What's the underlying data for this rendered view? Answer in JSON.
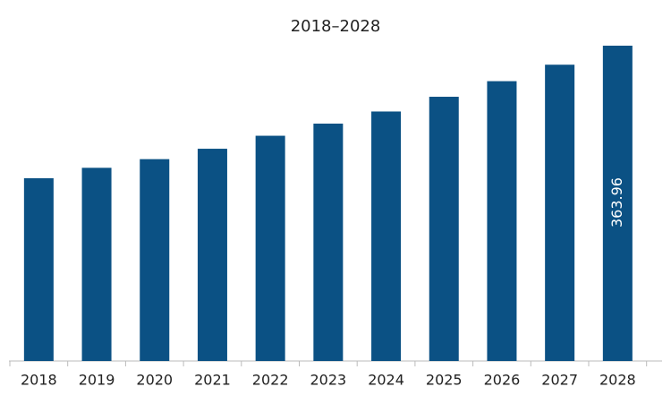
{
  "chart_data": {
    "type": "bar",
    "title": "2018–2028",
    "categories": [
      "2018",
      "2019",
      "2020",
      "2021",
      "2022",
      "2023",
      "2024",
      "2025",
      "2026",
      "2027",
      "2028"
    ],
    "values": [
      211,
      223,
      233,
      245,
      260,
      274,
      288,
      305,
      323,
      342,
      363.96
    ],
    "value_labels": [
      null,
      null,
      null,
      null,
      null,
      null,
      null,
      null,
      null,
      null,
      "363.96"
    ],
    "color": "#0b5184"
  }
}
